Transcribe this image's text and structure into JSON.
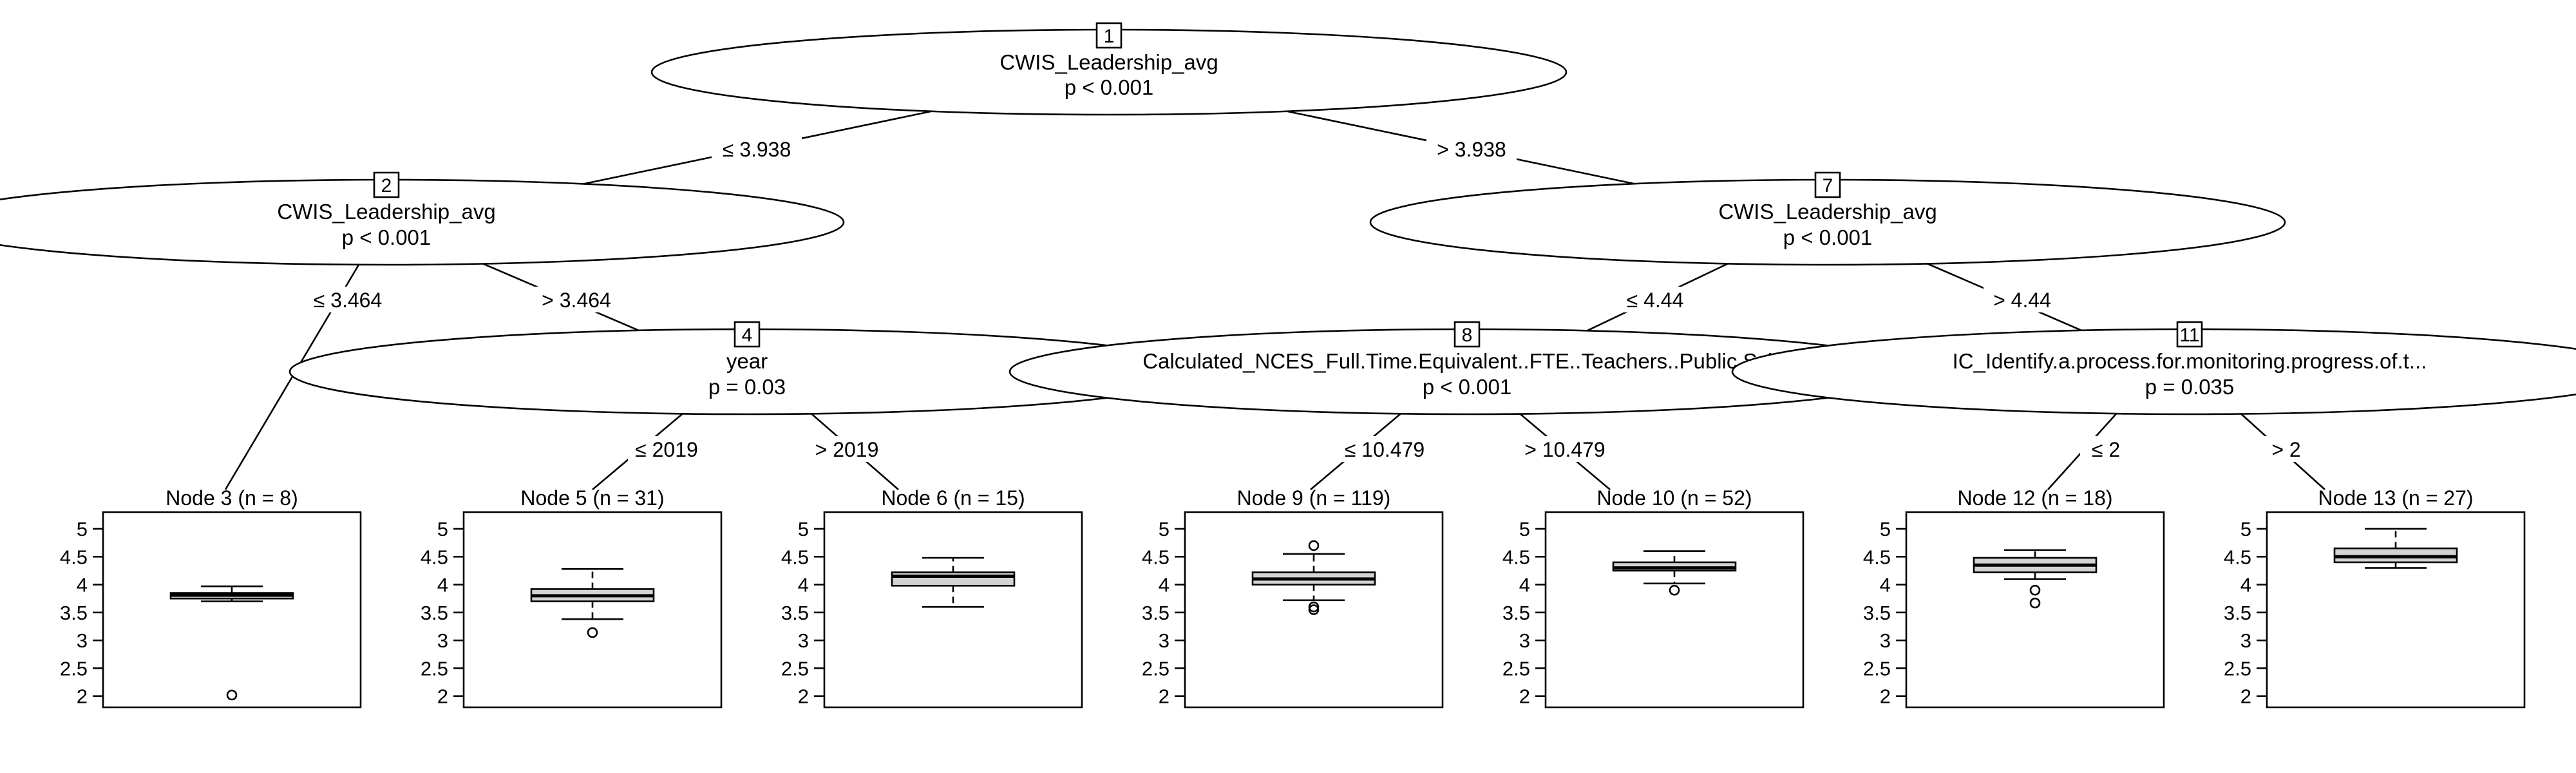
{
  "y_axis": {
    "range": [
      1.8,
      5.3
    ],
    "tick_labels": [
      "5",
      "4.5",
      "4",
      "3.5",
      "3",
      "2.5",
      "2"
    ],
    "tick_values": [
      5,
      4.5,
      4,
      3.5,
      3,
      2.5,
      2
    ]
  },
  "inner_nodes": [
    {
      "id": "1",
      "variable": "CWIS_Leadership_avg",
      "p": "p < 0.001"
    },
    {
      "id": "2",
      "variable": "CWIS_Leadership_avg",
      "p": "p < 0.001"
    },
    {
      "id": "4",
      "variable": "year",
      "p": "p = 0.03"
    },
    {
      "id": "7",
      "variable": "CWIS_Leadership_avg",
      "p": "p < 0.001"
    },
    {
      "id": "8",
      "variable": "Calculated_NCES_Full.Time.Equivalent..FTE..Teachers..Public.Scho",
      "p": "p < 0.001"
    },
    {
      "id": "11",
      "variable": "IC_Identify.a.process.for.monitoring.progress.of.t...",
      "p": "p = 0.035"
    }
  ],
  "edge_labels": [
    {
      "text": "≤ 3.938"
    },
    {
      "text": "> 3.938"
    },
    {
      "text": "≤ 3.464"
    },
    {
      "text": "> 3.464"
    },
    {
      "text": "≤ 4.44"
    },
    {
      "text": "> 4.44"
    },
    {
      "text": "≤ 2019"
    },
    {
      "text": "> 2019"
    },
    {
      "text": "≤ 10.479"
    },
    {
      "text": "> 10.479"
    },
    {
      "text": "≤ 2"
    },
    {
      "text": "> 2"
    }
  ],
  "chart_data": {
    "type": "boxplot",
    "y_range": [
      1.8,
      5.3
    ],
    "terminal_nodes": [
      {
        "title": "Node 3 (n = 8)",
        "q1": 3.75,
        "median": 3.81,
        "q3": 3.85,
        "whisker_low": 3.7,
        "whisker_high": 3.97,
        "outliers": [
          2.02
        ]
      },
      {
        "title": "Node 5 (n = 31)",
        "q1": 3.7,
        "median": 3.8,
        "q3": 3.92,
        "whisker_low": 3.38,
        "whisker_high": 4.28,
        "outliers": [
          3.14
        ]
      },
      {
        "title": "Node 6 (n = 15)",
        "q1": 3.98,
        "median": 4.15,
        "q3": 4.22,
        "whisker_low": 3.6,
        "whisker_high": 4.48,
        "outliers": []
      },
      {
        "title": "Node 9 (n = 119)",
        "q1": 4.0,
        "median": 4.1,
        "q3": 4.22,
        "whisker_low": 3.72,
        "whisker_high": 4.55,
        "outliers": [
          3.55,
          3.6,
          4.7
        ]
      },
      {
        "title": "Node 10 (n = 52)",
        "q1": 4.25,
        "median": 4.3,
        "q3": 4.4,
        "whisker_low": 4.02,
        "whisker_high": 4.6,
        "outliers": [
          3.9
        ]
      },
      {
        "title": "Node 12 (n = 18)",
        "q1": 4.22,
        "median": 4.35,
        "q3": 4.48,
        "whisker_low": 4.1,
        "whisker_high": 4.62,
        "outliers": [
          3.67,
          3.9
        ]
      },
      {
        "title": "Node 13 (n = 27)",
        "q1": 4.4,
        "median": 4.5,
        "q3": 4.65,
        "whisker_low": 4.3,
        "whisker_high": 5.0,
        "outliers": []
      }
    ]
  }
}
